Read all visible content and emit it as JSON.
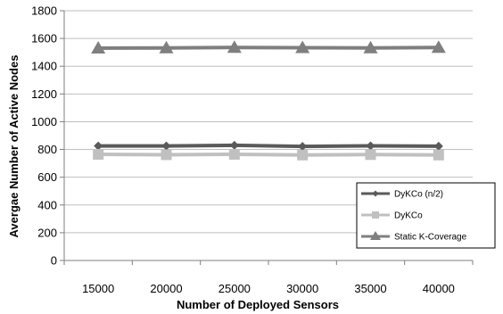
{
  "chart_data": {
    "type": "line",
    "x": [
      15000,
      20000,
      25000,
      30000,
      35000,
      40000
    ],
    "xlabel": "Number of  Deployed Sensors",
    "ylabel": "Avergae Number of Active Nodes",
    "ylim": [
      0,
      1800
    ],
    "yticks": [
      0,
      200,
      400,
      600,
      800,
      1000,
      1200,
      1400,
      1600,
      1800
    ],
    "grid": true,
    "legend_position": "right",
    "series": [
      {
        "name": "DyKCo (n/2)",
        "values": [
          825,
          825,
          830,
          822,
          826,
          824
        ],
        "color": "#5a5a5a",
        "marker": "diamond"
      },
      {
        "name": "DyKCo",
        "values": [
          765,
          762,
          765,
          760,
          763,
          760
        ],
        "color": "#c0c0c0",
        "marker": "square"
      },
      {
        "name": "Static K-Coverage",
        "values": [
          1530,
          1532,
          1535,
          1533,
          1532,
          1535
        ],
        "color": "#7f7f7f",
        "marker": "triangle"
      }
    ]
  }
}
